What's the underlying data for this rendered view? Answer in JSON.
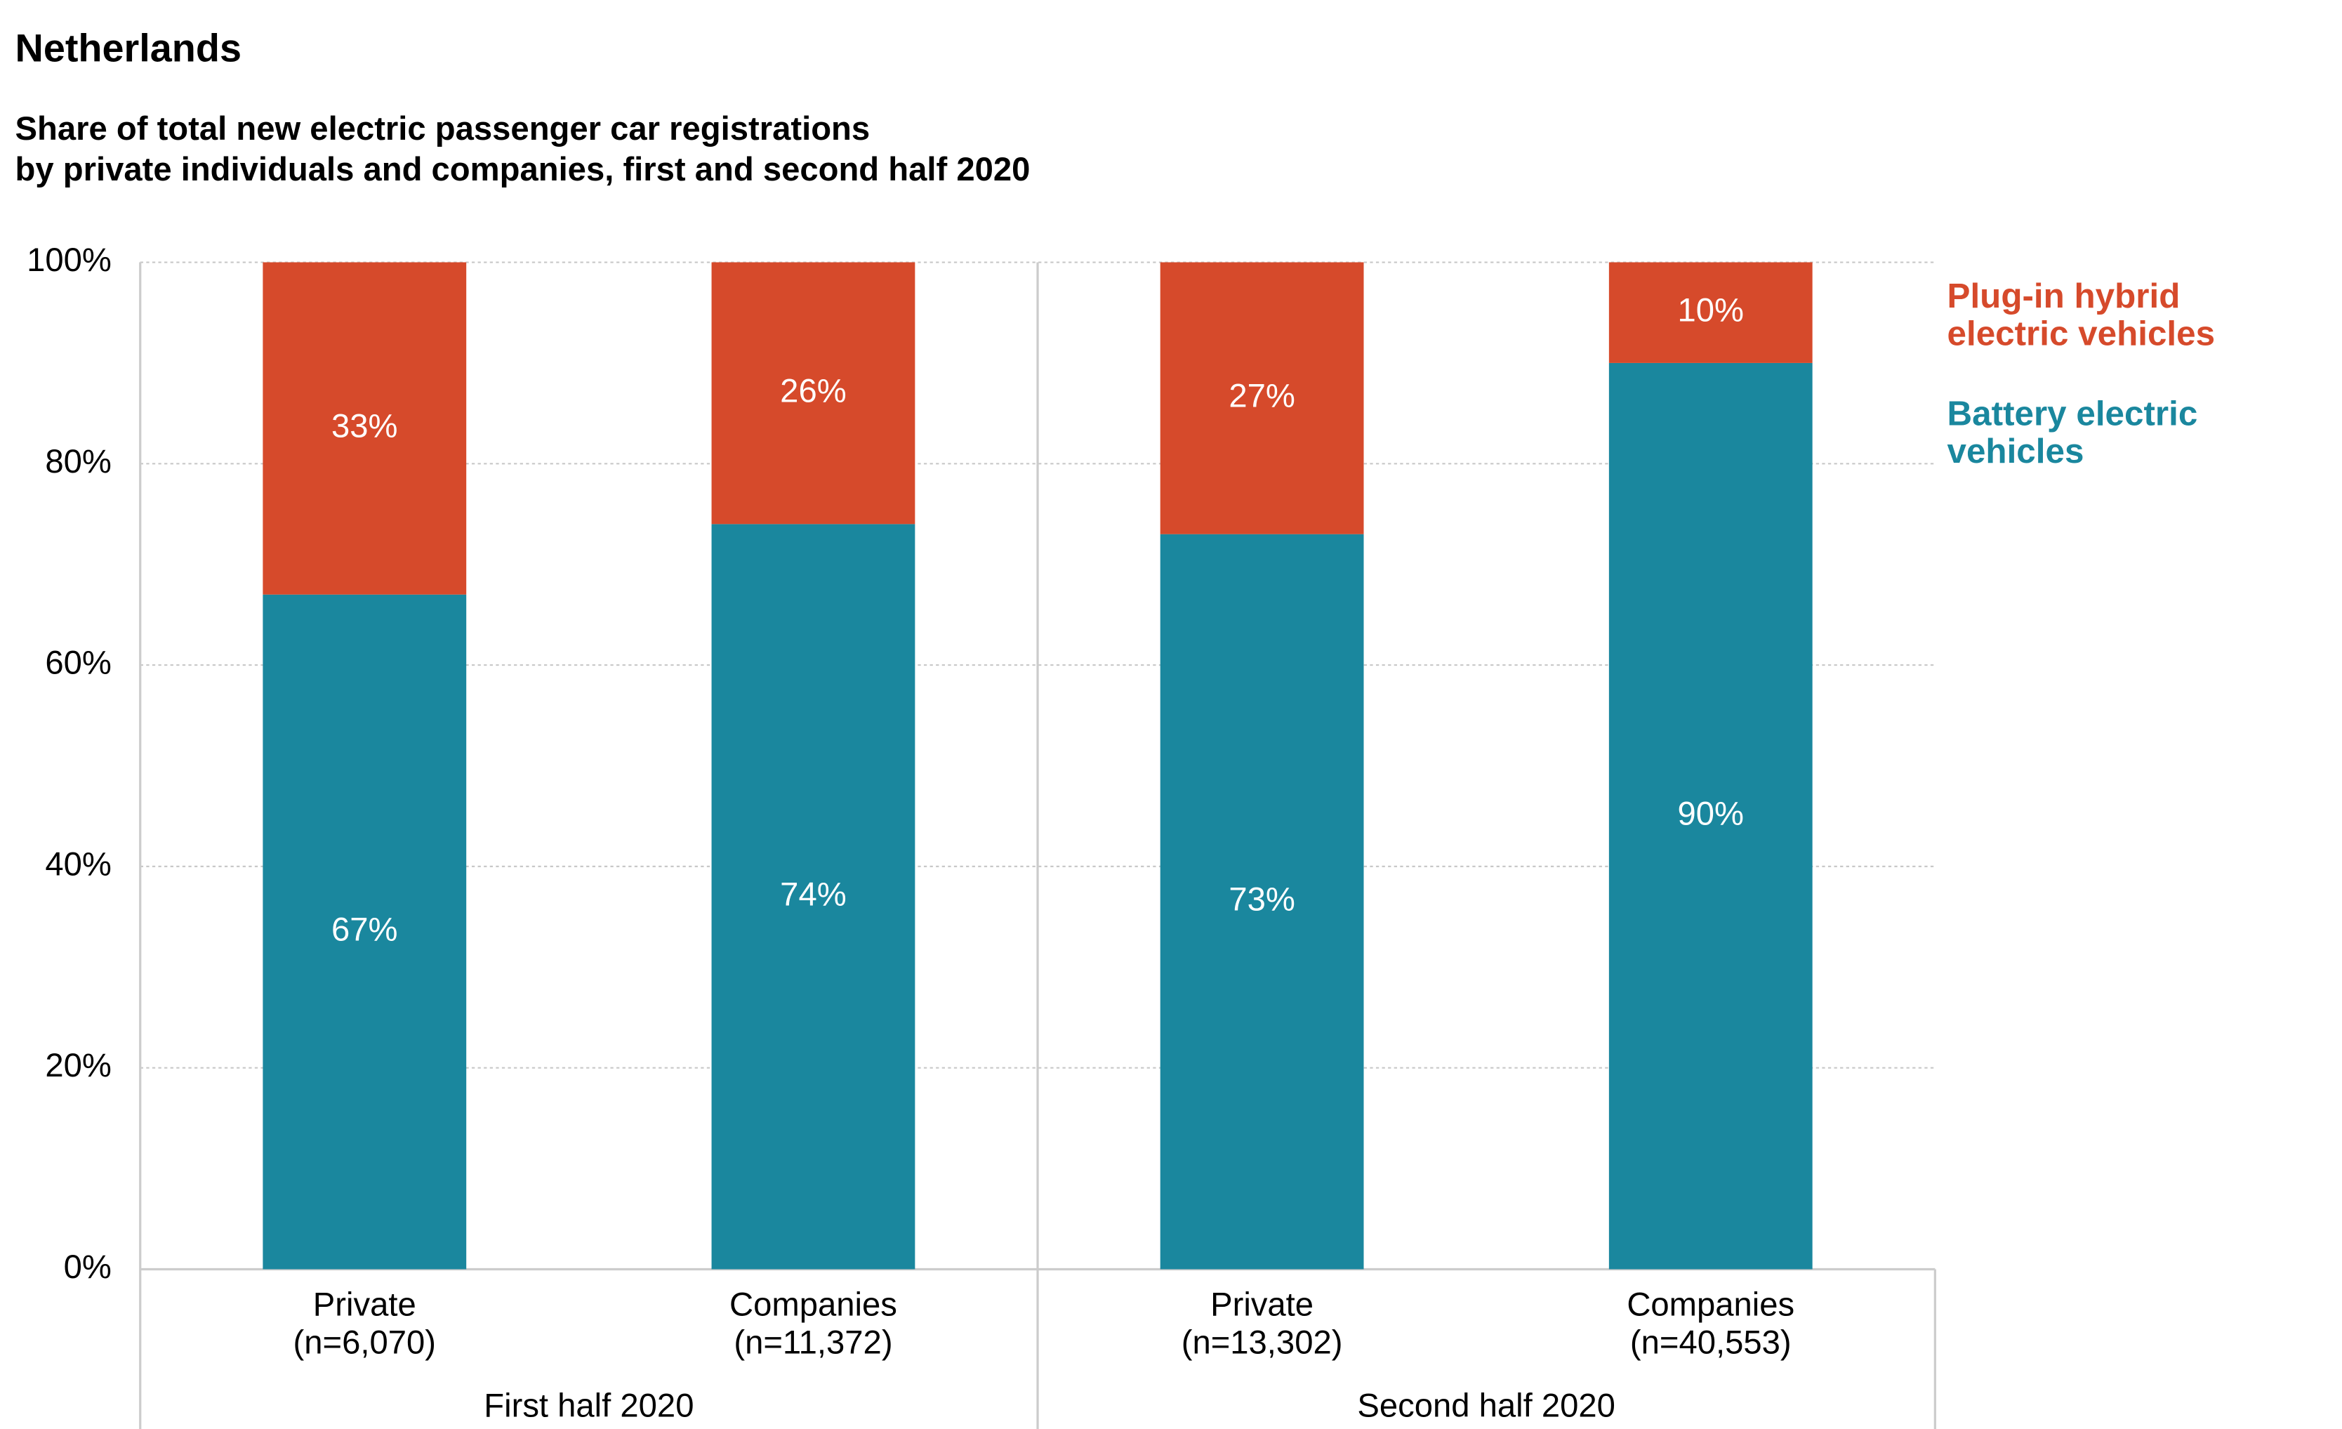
{
  "chart_data": {
    "type": "stacked_bar",
    "title": "Netherlands",
    "subtitle": [
      "Share of total new electric passenger car registrations",
      "by private individuals and companies, first and second half 2020"
    ],
    "categories": [
      [
        "Private",
        "(n=6,070)"
      ],
      [
        "Companies",
        "(n=11,372)"
      ],
      [
        "Private",
        "(n=13,302)"
      ],
      [
        "Companies",
        "(n=40,553)"
      ]
    ],
    "groups": [
      {
        "label": "First half 2020",
        "size": 2
      },
      {
        "label": "Second half 2020",
        "size": 2
      }
    ],
    "series": [
      {
        "name": "Battery electric vehicles",
        "color": "#1a879e",
        "values": [
          67,
          74,
          73,
          90
        ],
        "value_labels": [
          "67%",
          "74%",
          "73%",
          "90%"
        ]
      },
      {
        "name": "Plug-in hybrid electric vehicles",
        "color": "#d64a2b",
        "values": [
          33,
          26,
          27,
          10
        ],
        "value_labels": [
          "33%",
          "26%",
          "27%",
          "10%"
        ]
      }
    ],
    "ylim": [
      0,
      100
    ],
    "yticks": [
      {
        "value": 0,
        "label": "0%"
      },
      {
        "value": 20,
        "label": "20%"
      },
      {
        "value": 40,
        "label": "40%"
      },
      {
        "value": 60,
        "label": "60%"
      },
      {
        "value": 80,
        "label": "80%"
      },
      {
        "value": 100,
        "label": "100%"
      }
    ],
    "grid": true
  }
}
